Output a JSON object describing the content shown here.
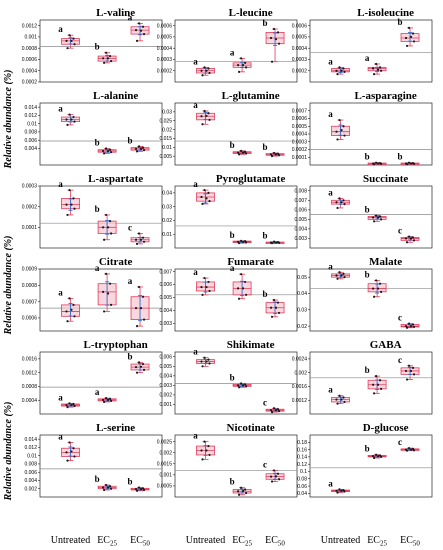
{
  "figure": {
    "y_axis_label": "Relative abundance (%)",
    "groups": [
      "Untreated",
      "EC25",
      "EC50"
    ],
    "group_label_parts": [
      {
        "base": "Untreated",
        "sub": ""
      },
      {
        "base": "EC",
        "sub": "25"
      },
      {
        "base": "EC",
        "sub": "50"
      }
    ],
    "colors": {
      "box": "#e23c5c",
      "fill": "#f6c6d2",
      "mean_error": "#2f6fd1",
      "points": "#1a1a1a",
      "ref_line": "#8a8a8a"
    }
  },
  "chart_data": [
    {
      "type": "box",
      "title": "L-valine",
      "ylim": [
        0.0002,
        0.0013
      ],
      "ticks": [
        "0.0012",
        "0.001",
        "0.0008",
        "0.0006",
        "0.0004",
        "0.0002"
      ],
      "tick_values": [
        0.0012,
        0.001,
        0.0008,
        0.0006,
        0.0004,
        0.0002
      ],
      "ref": 0.00083,
      "letters": [
        "a",
        "b",
        "a"
      ],
      "boxes": [
        {
          "min": 0.0008,
          "q1": 0.00087,
          "med": 0.00093,
          "q3": 0.00097,
          "max": 0.00103,
          "mean": 0.00093
        },
        {
          "min": 0.00054,
          "q1": 0.00057,
          "med": 0.00062,
          "q3": 0.00066,
          "max": 0.00072,
          "mean": 0.00062
        },
        {
          "min": 0.00093,
          "q1": 0.00105,
          "med": 0.00112,
          "q3": 0.00118,
          "max": 0.00124,
          "mean": 0.00111
        }
      ]
    },
    {
      "type": "box",
      "title": "L-leucine",
      "ylim": [
        0.0001,
        0.00065
      ],
      "ticks": [
        "0.0006",
        "0.0005",
        "0.0004",
        "0.0003",
        "0.0002"
      ],
      "tick_values": [
        0.0006,
        0.0005,
        0.0004,
        0.0003,
        0.0002
      ],
      "ref": 0.00028,
      "letters": [
        "a",
        "a",
        "b"
      ],
      "boxes": [
        {
          "min": 0.00016,
          "q1": 0.00018,
          "med": 0.0002,
          "q3": 0.00022,
          "max": 0.00023,
          "mean": 0.0002
        },
        {
          "min": 0.00019,
          "q1": 0.00023,
          "med": 0.00025,
          "q3": 0.00027,
          "max": 0.00031,
          "mean": 0.00025
        },
        {
          "min": 0.00028,
          "q1": 0.00044,
          "med": 0.00049,
          "q3": 0.00054,
          "max": 0.00057,
          "mean": 0.00048
        }
      ]
    },
    {
      "type": "box",
      "title": "L-isoleucine",
      "ylim": [
        0.0001,
        0.00065
      ],
      "ticks": [
        "0.0006",
        "0.0005",
        "0.0004",
        "0.0003",
        "0.0002"
      ],
      "tick_values": [
        0.0006,
        0.0005,
        0.0004,
        0.0003,
        0.0002
      ],
      "ref": 0.00036,
      "letters": [
        "a",
        "a",
        "b"
      ],
      "boxes": [
        {
          "min": 0.00017,
          "q1": 0.00019,
          "med": 0.0002,
          "q3": 0.00022,
          "max": 0.00023,
          "mean": 0.0002
        },
        {
          "min": 0.00017,
          "q1": 0.0002,
          "med": 0.00022,
          "q3": 0.00023,
          "max": 0.00026,
          "mean": 0.00021
        },
        {
          "min": 0.00042,
          "q1": 0.00046,
          "med": 0.00049,
          "q3": 0.00053,
          "max": 0.00058,
          "mean": 0.0005
        }
      ]
    },
    {
      "type": "box",
      "title": "L-alanine",
      "ylim": [
        0,
        0.015
      ],
      "ticks": [
        "0.014",
        "0.012",
        "0.01",
        "0.008",
        "0.006",
        "0.004"
      ],
      "tick_values": [
        0.014,
        0.012,
        0.01,
        0.008,
        0.006,
        0.004
      ],
      "ref": 0.0058,
      "letters": [
        "a",
        "b",
        "b"
      ],
      "boxes": [
        {
          "min": 0.0097,
          "q1": 0.0105,
          "med": 0.011,
          "q3": 0.0116,
          "max": 0.0122,
          "mean": 0.011
        },
        {
          "min": 0.0028,
          "q1": 0.0031,
          "med": 0.0034,
          "q3": 0.0037,
          "max": 0.004,
          "mean": 0.0034
        },
        {
          "min": 0.0033,
          "q1": 0.0036,
          "med": 0.0039,
          "q3": 0.0042,
          "max": 0.0045,
          "mean": 0.0039
        }
      ]
    },
    {
      "type": "box",
      "title": "L-glutamine",
      "ylim": [
        0,
        0.035
      ],
      "ticks": [
        "0.03",
        "0.025",
        "0.02",
        "0.015",
        "0.01",
        "0.005"
      ],
      "tick_values": [
        0.03,
        0.025,
        0.02,
        0.015,
        0.01,
        0.005
      ],
      "ref": 0.0135,
      "letters": [
        "a",
        "b",
        "b"
      ],
      "boxes": [
        {
          "min": 0.023,
          "q1": 0.0255,
          "med": 0.0275,
          "q3": 0.0292,
          "max": 0.0305,
          "mean": 0.0277
        },
        {
          "min": 0.006,
          "q1": 0.0065,
          "med": 0.007,
          "q3": 0.0075,
          "max": 0.008,
          "mean": 0.007
        },
        {
          "min": 0.005,
          "q1": 0.0055,
          "med": 0.006,
          "q3": 0.0064,
          "max": 0.0068,
          "mean": 0.006
        }
      ]
    },
    {
      "type": "box",
      "title": "L-asparagine",
      "ylim": [
        0,
        0.0008
      ],
      "ticks": [
        "0.0007",
        "0.0006",
        "0.0005",
        "0.0004",
        "0.0003",
        "0.0002",
        "0.0001"
      ],
      "tick_values": [
        0.0007,
        0.0006,
        0.0005,
        0.0004,
        0.0003,
        0.0002,
        0.0001
      ],
      "ref": 0.0002,
      "letters": [
        "a",
        "b",
        "b"
      ],
      "boxes": [
        {
          "min": 0.00033,
          "q1": 0.00038,
          "med": 0.00043,
          "q3": 0.0005,
          "max": 0.00058,
          "mean": 0.00045
        },
        {
          "min": 1e-05,
          "q1": 1.5e-05,
          "med": 2e-05,
          "q3": 2.5e-05,
          "max": 3e-05,
          "mean": 2e-05
        },
        {
          "min": 1e-05,
          "q1": 1.5e-05,
          "med": 2e-05,
          "q3": 2.5e-05,
          "max": 3e-05,
          "mean": 2e-05
        }
      ]
    },
    {
      "type": "box",
      "title": "L-aspartate",
      "ylim": [
        0,
        0.0003
      ],
      "ticks": [
        "0.0003",
        "0.0002",
        "0.0001"
      ],
      "tick_values": [
        0.0003,
        0.0002,
        0.0001
      ],
      "ref": 0.00012,
      "letters": [
        "a",
        "b",
        "c"
      ],
      "boxes": [
        {
          "min": 0.00016,
          "q1": 0.00019,
          "med": 0.00021,
          "q3": 0.00024,
          "max": 0.00028,
          "mean": 0.00021
        },
        {
          "min": 4e-05,
          "q1": 7e-05,
          "med": 0.0001,
          "q3": 0.00013,
          "max": 0.00016,
          "mean": 0.0001
        },
        {
          "min": 2e-05,
          "q1": 3e-05,
          "med": 4e-05,
          "q3": 5e-05,
          "max": 7e-05,
          "mean": 4e-05
        }
      ]
    },
    {
      "type": "box",
      "title": "Pyroglutamate",
      "ylim": [
        0,
        0.045
      ],
      "ticks": [
        "0.04",
        "0.03",
        "0.02",
        "0.01"
      ],
      "tick_values": [
        0.04,
        0.03,
        0.02,
        0.01
      ],
      "ref": 0.016,
      "letters": [
        "a",
        "b",
        "b"
      ],
      "boxes": [
        {
          "min": 0.032,
          "q1": 0.034,
          "med": 0.037,
          "q3": 0.04,
          "max": 0.042,
          "mean": 0.036
        },
        {
          "min": 0.0035,
          "q1": 0.004,
          "med": 0.0045,
          "q3": 0.005,
          "max": 0.0052,
          "mean": 0.0045
        },
        {
          "min": 0.0035,
          "q1": 0.0038,
          "med": 0.004,
          "q3": 0.0043,
          "max": 0.0046,
          "mean": 0.004
        }
      ]
    },
    {
      "type": "box",
      "title": "Succinate",
      "ylim": [
        0.002,
        0.0085
      ],
      "ticks": [
        "0.008",
        "0.007",
        "0.006",
        "0.005",
        "0.004",
        "0.003"
      ],
      "tick_values": [
        0.008,
        0.007,
        0.006,
        0.005,
        0.004,
        0.003
      ],
      "ref": 0.0055,
      "letters": [
        "a",
        "b",
        "c"
      ],
      "boxes": [
        {
          "min": 0.0062,
          "q1": 0.0066,
          "med": 0.0068,
          "q3": 0.007,
          "max": 0.0072,
          "mean": 0.0068
        },
        {
          "min": 0.0048,
          "q1": 0.005,
          "med": 0.0052,
          "q3": 0.0053,
          "max": 0.0054,
          "mean": 0.0052
        },
        {
          "min": 0.0026,
          "q1": 0.0028,
          "med": 0.003,
          "q3": 0.0031,
          "max": 0.0032,
          "mean": 0.003
        }
      ]
    },
    {
      "type": "box",
      "title": "Citrate",
      "ylim": [
        0.00052,
        0.0009
      ],
      "ticks": [
        "0.0009",
        "0.0008",
        "0.0007",
        "0.0006"
      ],
      "tick_values": [
        0.0009,
        0.0008,
        0.0007,
        0.0006
      ],
      "ref": 0.00066,
      "letters": [
        "a",
        "a",
        "a"
      ],
      "boxes": [
        {
          "min": 0.00058,
          "q1": 0.00061,
          "med": 0.00064,
          "q3": 0.00068,
          "max": 0.00072,
          "mean": 0.00065
        },
        {
          "min": 0.00064,
          "q1": 0.00068,
          "med": 0.00076,
          "q3": 0.00081,
          "max": 0.00087,
          "mean": 0.00075
        },
        {
          "min": 0.00055,
          "q1": 0.00059,
          "med": 0.00066,
          "q3": 0.00073,
          "max": 0.00079,
          "mean": 0.00066
        }
      ]
    },
    {
      "type": "box",
      "title": "Fumarate",
      "ylim": [
        0.0024,
        0.0072
      ],
      "ticks": [
        "0.007",
        "0.006",
        "0.005",
        "0.004",
        "0.003"
      ],
      "tick_values": [
        0.007,
        0.006,
        0.005,
        0.004,
        0.003
      ],
      "ref": 0.0052,
      "letters": [
        "a",
        "a",
        "b"
      ],
      "boxes": [
        {
          "min": 0.0052,
          "q1": 0.0055,
          "med": 0.0058,
          "q3": 0.0062,
          "max": 0.0065,
          "mean": 0.0058
        },
        {
          "min": 0.0049,
          "q1": 0.0052,
          "med": 0.0057,
          "q3": 0.0062,
          "max": 0.0068,
          "mean": 0.0057
        },
        {
          "min": 0.0035,
          "q1": 0.0038,
          "med": 0.0042,
          "q3": 0.0046,
          "max": 0.0048,
          "mean": 0.0042
        }
      ]
    },
    {
      "type": "box",
      "title": "Malate",
      "ylim": [
        0.017,
        0.055
      ],
      "ticks": [
        "0.05",
        "0.04",
        "0.03",
        "0.02"
      ],
      "tick_values": [
        0.05,
        0.04,
        0.03,
        0.02
      ],
      "ref": 0.043,
      "letters": [
        "a",
        "b",
        "c"
      ],
      "boxes": [
        {
          "min": 0.049,
          "q1": 0.05,
          "med": 0.051,
          "q3": 0.052,
          "max": 0.053,
          "mean": 0.051
        },
        {
          "min": 0.038,
          "q1": 0.041,
          "med": 0.043,
          "q3": 0.046,
          "max": 0.048,
          "mean": 0.043
        },
        {
          "min": 0.019,
          "q1": 0.0195,
          "med": 0.02,
          "q3": 0.021,
          "max": 0.0215,
          "mean": 0.02
        }
      ]
    },
    {
      "type": "box",
      "title": "L-tryptophan",
      "ylim": [
        0,
        0.0018
      ],
      "ticks": [
        "0.0016",
        "0.0012",
        "0.0008",
        "0.0004"
      ],
      "tick_values": [
        0.0016,
        0.0012,
        0.0008,
        0.0004
      ],
      "ref": 0.00078,
      "letters": [
        "a",
        "a",
        "b"
      ],
      "boxes": [
        {
          "min": 0.0002,
          "q1": 0.00023,
          "med": 0.00026,
          "q3": 0.00029,
          "max": 0.00031,
          "mean": 0.00026
        },
        {
          "min": 0.00035,
          "q1": 0.00038,
          "med": 0.00041,
          "q3": 0.00044,
          "max": 0.00046,
          "mean": 0.00041
        },
        {
          "min": 0.0012,
          "q1": 0.00128,
          "med": 0.00136,
          "q3": 0.00145,
          "max": 0.0015,
          "mean": 0.00137
        }
      ]
    },
    {
      "type": "box",
      "title": "Shikimate",
      "ylim": [
        0,
        0.0065
      ],
      "ticks": [
        "0.006",
        "0.005",
        "0.004",
        "0.003",
        "0.002",
        "0.001"
      ],
      "tick_values": [
        0.006,
        0.005,
        0.004,
        0.003,
        0.002,
        0.001
      ],
      "ref": 0.0032,
      "letters": [
        "a",
        "b",
        "c"
      ],
      "boxes": [
        {
          "min": 0.005,
          "q1": 0.0053,
          "med": 0.0055,
          "q3": 0.0057,
          "max": 0.0059,
          "mean": 0.0055
        },
        {
          "min": 0.0028,
          "q1": 0.0029,
          "med": 0.003,
          "q3": 0.0031,
          "max": 0.0032,
          "mean": 0.003
        },
        {
          "min": 0.0002,
          "q1": 0.0003,
          "med": 0.0004,
          "q3": 0.0005,
          "max": 0.0006,
          "mean": 0.0004
        }
      ]
    },
    {
      "type": "box",
      "title": "GABA",
      "ylim": [
        0.0008,
        0.0026
      ],
      "ticks": [
        "0.0024",
        "0.002",
        "0.0016",
        "0.0012"
      ],
      "tick_values": [
        0.0024,
        0.002,
        0.0016,
        0.0012
      ],
      "ref": 0.00185,
      "letters": [
        "a",
        "b",
        "c"
      ],
      "boxes": [
        {
          "min": 0.0011,
          "q1": 0.00115,
          "med": 0.00122,
          "q3": 0.00128,
          "max": 0.00133,
          "mean": 0.00122
        },
        {
          "min": 0.0014,
          "q1": 0.00153,
          "med": 0.00165,
          "q3": 0.00178,
          "max": 0.0019,
          "mean": 0.00165
        },
        {
          "min": 0.0018,
          "q1": 0.00195,
          "med": 0.00205,
          "q3": 0.00214,
          "max": 0.0022,
          "mean": 0.00205
        }
      ]
    },
    {
      "type": "box",
      "title": "L-serine",
      "ylim": [
        0,
        0.015
      ],
      "ticks": [
        "0.014",
        "0.012",
        "0.01",
        "0.008",
        "0.006",
        "0.004",
        "0.002"
      ],
      "tick_values": [
        0.014,
        0.012,
        0.01,
        0.008,
        0.006,
        0.004,
        0.002
      ],
      "ref": 0.0068,
      "letters": [
        "a",
        "b",
        "b"
      ],
      "boxes": [
        {
          "min": 0.0088,
          "q1": 0.0098,
          "med": 0.0108,
          "q3": 0.0118,
          "max": 0.0132,
          "mean": 0.011
        },
        {
          "min": 0.0017,
          "q1": 0.002,
          "med": 0.0023,
          "q3": 0.0026,
          "max": 0.0029,
          "mean": 0.0023
        },
        {
          "min": 0.0015,
          "q1": 0.0017,
          "med": 0.0019,
          "q3": 0.0021,
          "max": 0.0023,
          "mean": 0.0019
        }
      ]
    },
    {
      "type": "box",
      "title": "Nicotinate",
      "ylim": [
        0,
        0.0028
      ],
      "ticks": [
        "0.0025",
        "0.002",
        "0.0015",
        "0.001",
        "0.0005"
      ],
      "tick_values": [
        0.0025,
        0.002,
        0.0015,
        0.001,
        0.0005
      ],
      "ref": 0.0012,
      "letters": [
        "a",
        "b",
        "c"
      ],
      "boxes": [
        {
          "min": 0.0017,
          "q1": 0.0019,
          "med": 0.0021,
          "q3": 0.0023,
          "max": 0.0025,
          "mean": 0.0021
        },
        {
          "min": 0.0001,
          "q1": 0.00018,
          "med": 0.00026,
          "q3": 0.00034,
          "max": 0.00042,
          "mean": 0.00027
        },
        {
          "min": 0.0007,
          "q1": 0.0008,
          "med": 0.00092,
          "q3": 0.00105,
          "max": 0.0012,
          "mean": 0.00093
        }
      ]
    },
    {
      "type": "box",
      "title": "D-glucose",
      "ylim": [
        0.03,
        0.2
      ],
      "ticks": [
        "0.18",
        "0.16",
        "0.14",
        "0.12",
        "0.1",
        "0.08",
        "0.06",
        "0.04"
      ],
      "tick_values": [
        0.18,
        0.16,
        0.14,
        0.12,
        0.1,
        0.08,
        0.06,
        0.04
      ],
      "ref": 0.11,
      "letters": [
        "a",
        "b",
        "c"
      ],
      "boxes": [
        {
          "min": 0.042,
          "q1": 0.045,
          "med": 0.047,
          "q3": 0.049,
          "max": 0.051,
          "mean": 0.047
        },
        {
          "min": 0.137,
          "q1": 0.14,
          "med": 0.142,
          "q3": 0.144,
          "max": 0.146,
          "mean": 0.142
        },
        {
          "min": 0.157,
          "q1": 0.158,
          "med": 0.16,
          "q3": 0.162,
          "max": 0.164,
          "mean": 0.16
        }
      ]
    }
  ]
}
